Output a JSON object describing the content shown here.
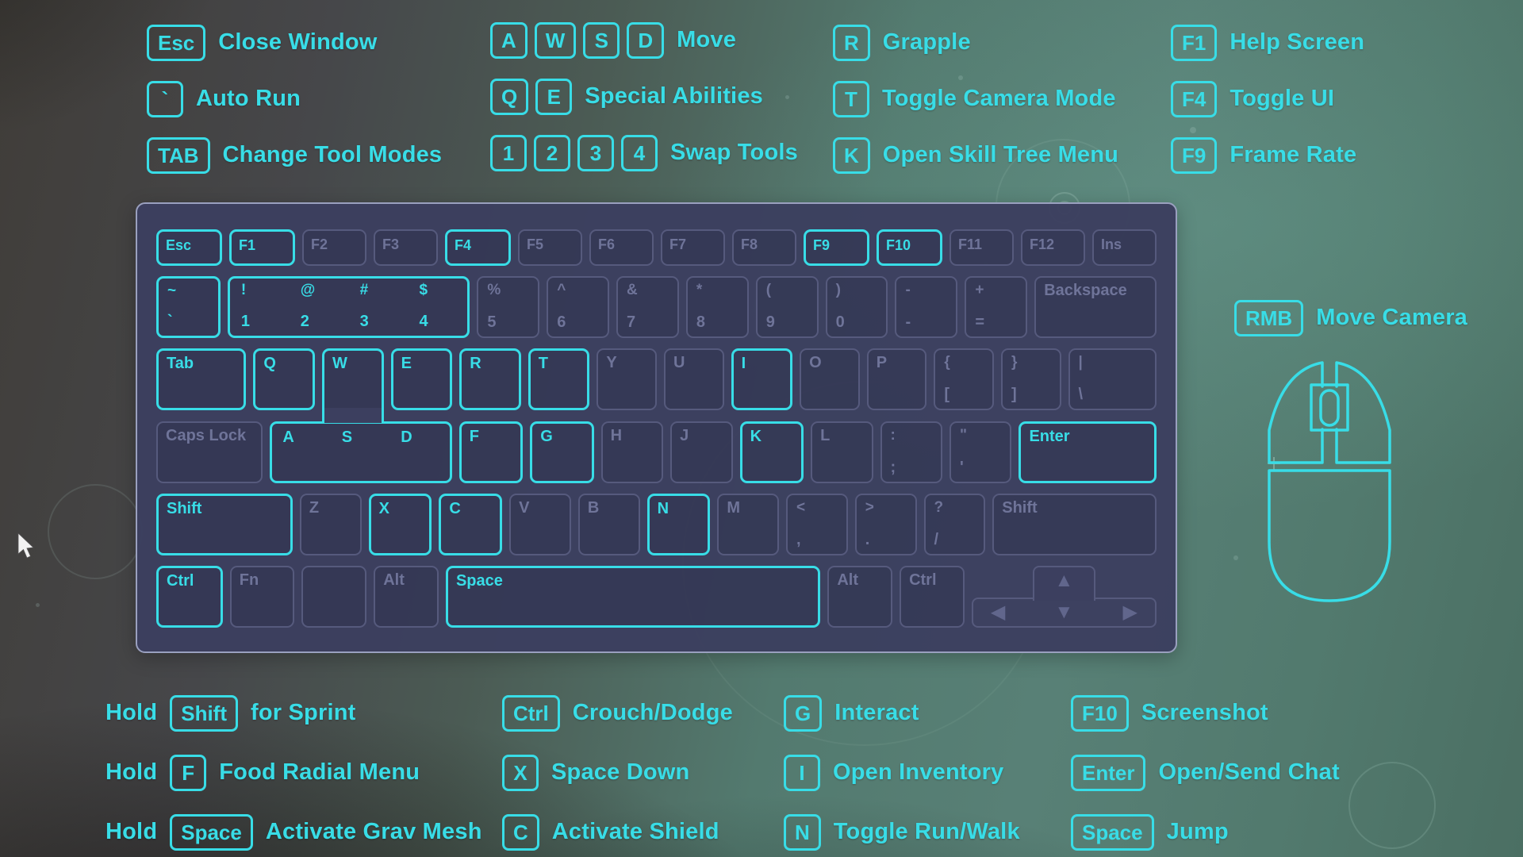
{
  "colors": {
    "accent": "#38dde7",
    "panel_bg": "#3c3f5f",
    "panel_border": "#9aa0bf",
    "dim_key": "#565a7d"
  },
  "legend_columns_top": [
    {
      "items": [
        {
          "keys": [
            "Esc"
          ],
          "label": "Close Window"
        },
        {
          "keys": [
            "`"
          ],
          "label": "Auto Run"
        },
        {
          "keys": [
            "TAB"
          ],
          "label": "Change Tool Modes"
        }
      ]
    },
    {
      "items": [
        {
          "keys": [
            "A",
            "W",
            "S",
            "D"
          ],
          "label": "Move"
        },
        {
          "keys": [
            "Q",
            "E"
          ],
          "label": "Special Abilities"
        },
        {
          "keys": [
            "1",
            "2",
            "3",
            "4"
          ],
          "label": "Swap Tools"
        }
      ]
    },
    {
      "items": [
        {
          "keys": [
            "R"
          ],
          "label": "Grapple"
        },
        {
          "keys": [
            "T"
          ],
          "label": "Toggle Camera Mode"
        },
        {
          "keys": [
            "K"
          ],
          "label": "Open Skill Tree Menu"
        }
      ]
    },
    {
      "items": [
        {
          "keys": [
            "F1"
          ],
          "label": "Help Screen"
        },
        {
          "keys": [
            "F4"
          ],
          "label": "Toggle UI"
        },
        {
          "keys": [
            "F9"
          ],
          "label": "Frame Rate"
        }
      ]
    }
  ],
  "legend_columns_bottom": [
    {
      "items": [
        {
          "prefix": "Hold",
          "keys": [
            "Shift"
          ],
          "label": "for Sprint"
        },
        {
          "prefix": "Hold",
          "keys": [
            "F"
          ],
          "label": "Food Radial Menu"
        },
        {
          "prefix": "Hold",
          "keys": [
            "Space"
          ],
          "label": "Activate Grav Mesh"
        }
      ]
    },
    {
      "items": [
        {
          "keys": [
            "Ctrl"
          ],
          "label": "Crouch/Dodge"
        },
        {
          "keys": [
            "X"
          ],
          "label": "Space Down"
        },
        {
          "keys": [
            "C"
          ],
          "label": "Activate Shield"
        }
      ]
    },
    {
      "items": [
        {
          "keys": [
            "G"
          ],
          "label": "Interact"
        },
        {
          "keys": [
            "I"
          ],
          "label": "Open Inventory"
        },
        {
          "keys": [
            "N"
          ],
          "label": "Toggle Run/Walk"
        }
      ]
    },
    {
      "items": [
        {
          "keys": [
            "F10"
          ],
          "label": "Screenshot"
        },
        {
          "keys": [
            "Enter"
          ],
          "label": "Open/Send Chat"
        },
        {
          "keys": [
            "Space"
          ],
          "label": "Jump"
        }
      ]
    }
  ],
  "mouse_legend": {
    "key": "RMB",
    "label": "Move Camera"
  },
  "keyboard": {
    "rows": [
      {
        "keys": [
          {
            "l": "Esc",
            "on": true
          },
          {
            "l": "F1",
            "on": true
          },
          {
            "l": "F2"
          },
          {
            "l": "F3"
          },
          {
            "l": "F4",
            "on": true
          },
          {
            "l": "F5"
          },
          {
            "l": "F6"
          },
          {
            "l": "F7"
          },
          {
            "l": "F8"
          },
          {
            "l": "F9",
            "on": true
          },
          {
            "l": "F10",
            "on": true
          },
          {
            "l": "F11"
          },
          {
            "l": "F12"
          },
          {
            "l": "Ins"
          }
        ]
      },
      {
        "keys": [
          {
            "sub": "~",
            "l": "`",
            "on": true
          },
          {
            "group": [
              [
                "!",
                "1"
              ],
              [
                "@",
                "2"
              ],
              [
                "#",
                "3"
              ],
              [
                "$",
                "4"
              ]
            ],
            "on": true,
            "u": 4
          },
          {
            "sub": "%",
            "l": "5"
          },
          {
            "sub": "^",
            "l": "6"
          },
          {
            "sub": "&",
            "l": "7"
          },
          {
            "sub": "*",
            "l": "8"
          },
          {
            "sub": "(",
            "l": "9"
          },
          {
            "sub": ")",
            "l": "0"
          },
          {
            "sub": "-",
            "l": "-"
          },
          {
            "sub": "+",
            "l": "="
          },
          {
            "l": "Backspace",
            "u": 2
          }
        ]
      },
      {
        "keys": [
          {
            "l": "Tab",
            "on": true,
            "u": 1.5
          },
          {
            "l": "Q",
            "on": true
          },
          {
            "l": "W",
            "on": true,
            "connector": true
          },
          {
            "l": "E",
            "on": true
          },
          {
            "l": "R",
            "on": true
          },
          {
            "l": "T",
            "on": true
          },
          {
            "l": "Y"
          },
          {
            "l": "U"
          },
          {
            "l": "I",
            "on": true
          },
          {
            "l": "O"
          },
          {
            "l": "P"
          },
          {
            "sub": "{",
            "l": "["
          },
          {
            "sub": "}",
            "l": "]"
          },
          {
            "sub": "|",
            "l": "\\",
            "u": 1.5
          }
        ]
      },
      {
        "keys": [
          {
            "l": "Caps Lock",
            "u": 1.75
          },
          {
            "group": [
              [
                "A"
              ],
              [
                "S"
              ],
              [
                "D"
              ]
            ],
            "on": true,
            "u": 3
          },
          {
            "l": "F",
            "on": true
          },
          {
            "l": "G",
            "on": true
          },
          {
            "l": "H"
          },
          {
            "l": "J"
          },
          {
            "l": "K",
            "on": true
          },
          {
            "l": "L"
          },
          {
            "sub": ":",
            "l": ";"
          },
          {
            "sub": "\"",
            "l": "'"
          },
          {
            "l": "Enter",
            "on": true,
            "u": 2.25
          }
        ]
      },
      {
        "keys": [
          {
            "l": "Shift",
            "on": true,
            "u": 2.25
          },
          {
            "l": "Z"
          },
          {
            "l": "X",
            "on": true
          },
          {
            "l": "C",
            "on": true
          },
          {
            "l": "V"
          },
          {
            "l": "B"
          },
          {
            "l": "N",
            "on": true
          },
          {
            "l": "M"
          },
          {
            "sub": "<",
            "l": ","
          },
          {
            "sub": ">",
            "l": "."
          },
          {
            "sub": "?",
            "l": "/"
          },
          {
            "l": "Shift",
            "u": 2.75
          }
        ]
      },
      {
        "keys": [
          {
            "l": "Ctrl",
            "on": true
          },
          {
            "l": "Fn"
          },
          {
            "l": ""
          },
          {
            "l": "Alt"
          },
          {
            "l": "Space",
            "on": true,
            "u": 6
          },
          {
            "l": "Alt"
          },
          {
            "l": "Ctrl"
          },
          {
            "arrows": true,
            "u": 3
          }
        ]
      }
    ]
  },
  "arrow_icons": {
    "up": "▲",
    "left": "◀",
    "down": "▼",
    "right": "▶"
  }
}
